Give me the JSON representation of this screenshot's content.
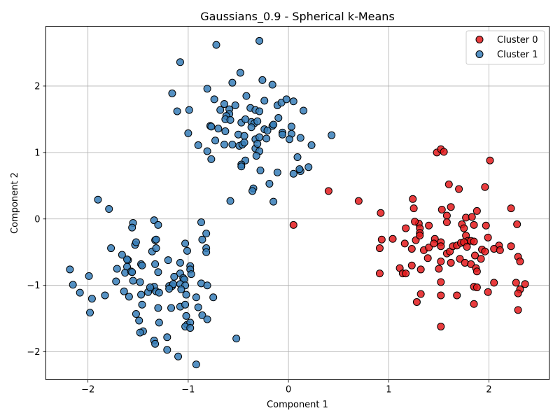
{
  "chart_data": {
    "type": "scatter",
    "title": "Gaussians_0.9 - Spherical k-Means",
    "xlabel": "Component 1",
    "ylabel": "Component 2",
    "xlim": [
      -2.42,
      2.6
    ],
    "ylim": [
      -2.42,
      2.9
    ],
    "xticks": [
      -2,
      -1,
      0,
      1,
      2
    ],
    "yticks": [
      -2,
      -1,
      0,
      1,
      2
    ],
    "grid": true,
    "legend_position": "top-right",
    "series": [
      {
        "name": "Cluster 0",
        "color": "#e41a1c",
        "points": [
          [
            1.48,
            1.0
          ],
          [
            1.52,
            1.05
          ],
          [
            1.55,
            1.01
          ],
          [
            2.01,
            0.88
          ],
          [
            1.6,
            0.52
          ],
          [
            1.7,
            0.45
          ],
          [
            1.96,
            0.48
          ],
          [
            0.4,
            0.42
          ],
          [
            0.7,
            0.27
          ],
          [
            1.24,
            0.3
          ],
          [
            1.25,
            0.16
          ],
          [
            0.92,
            0.09
          ],
          [
            1.53,
            0.14
          ],
          [
            1.62,
            0.18
          ],
          [
            1.58,
            0.05
          ],
          [
            1.77,
            0.02
          ],
          [
            1.88,
            0.12
          ],
          [
            1.83,
            0.03
          ],
          [
            2.22,
            0.16
          ],
          [
            0.05,
            -0.09
          ],
          [
            1.3,
            -0.07
          ],
          [
            1.26,
            -0.04
          ],
          [
            1.17,
            -0.14
          ],
          [
            1.4,
            -0.1
          ],
          [
            1.58,
            -0.05
          ],
          [
            1.73,
            -0.08
          ],
          [
            1.75,
            -0.14
          ],
          [
            1.85,
            -0.09
          ],
          [
            1.97,
            -0.1
          ],
          [
            2.28,
            -0.08
          ],
          [
            0.93,
            -0.31
          ],
          [
            1.04,
            -0.3
          ],
          [
            1.16,
            -0.37
          ],
          [
            1.27,
            -0.32
          ],
          [
            1.31,
            -0.14
          ],
          [
            1.31,
            -0.21
          ],
          [
            1.31,
            -0.25
          ],
          [
            1.46,
            -0.3
          ],
          [
            1.52,
            -0.35
          ],
          [
            1.52,
            -0.41
          ],
          [
            1.77,
            -0.25
          ],
          [
            1.79,
            -0.33
          ],
          [
            1.82,
            -0.33
          ],
          [
            1.85,
            -0.34
          ],
          [
            1.99,
            -0.28
          ],
          [
            2.1,
            -0.4
          ],
          [
            2.05,
            -0.45
          ],
          [
            2.22,
            -0.41
          ],
          [
            0.91,
            -0.44
          ],
          [
            1.23,
            -0.45
          ],
          [
            1.35,
            -0.47
          ],
          [
            1.4,
            -0.43
          ],
          [
            1.45,
            -0.37
          ],
          [
            1.58,
            -0.52
          ],
          [
            1.61,
            -0.49
          ],
          [
            1.64,
            -0.41
          ],
          [
            1.68,
            -0.4
          ],
          [
            1.72,
            -0.36
          ],
          [
            1.75,
            -0.35
          ],
          [
            1.78,
            -0.42
          ],
          [
            1.86,
            -0.55
          ],
          [
            1.93,
            -0.46
          ],
          [
            1.96,
            -0.49
          ],
          [
            2.11,
            -0.47
          ],
          [
            1.39,
            -0.59
          ],
          [
            1.52,
            -0.64
          ],
          [
            1.62,
            -0.66
          ],
          [
            1.71,
            -0.6
          ],
          [
            1.76,
            -0.66
          ],
          [
            1.82,
            -0.68
          ],
          [
            1.92,
            -0.6
          ],
          [
            2.29,
            -0.57
          ],
          [
            2.31,
            -0.64
          ],
          [
            1.11,
            -0.74
          ],
          [
            1.23,
            -0.7
          ],
          [
            1.32,
            -0.76
          ],
          [
            1.5,
            -0.75
          ],
          [
            1.87,
            -0.74
          ],
          [
            1.88,
            -0.79
          ],
          [
            0.91,
            -0.82
          ],
          [
            1.14,
            -0.82
          ],
          [
            1.17,
            -0.82
          ],
          [
            1.52,
            -0.95
          ],
          [
            1.85,
            -1.02
          ],
          [
            1.88,
            -1.03
          ],
          [
            2.05,
            -0.96
          ],
          [
            2.27,
            -0.96
          ],
          [
            2.36,
            -0.98
          ],
          [
            1.99,
            -1.1
          ],
          [
            2.31,
            -1.06
          ],
          [
            1.32,
            -1.13
          ],
          [
            1.52,
            -1.15
          ],
          [
            1.68,
            -1.15
          ],
          [
            2.29,
            -1.12
          ],
          [
            1.28,
            -1.25
          ],
          [
            1.85,
            -1.28
          ],
          [
            2.29,
            -1.37
          ],
          [
            1.52,
            -1.62
          ]
        ]
      },
      {
        "name": "Cluster 1",
        "color": "#377eb8",
        "points": [
          [
            -0.29,
            2.68
          ],
          [
            -0.72,
            2.62
          ],
          [
            -1.08,
            2.36
          ],
          [
            -0.48,
            2.2
          ],
          [
            -0.56,
            2.05
          ],
          [
            -0.26,
            2.09
          ],
          [
            -0.16,
            2.02
          ],
          [
            -1.16,
            1.89
          ],
          [
            -0.81,
            1.96
          ],
          [
            -0.42,
            1.85
          ],
          [
            -0.74,
            1.8
          ],
          [
            -0.53,
            1.71
          ],
          [
            -0.64,
            1.73
          ],
          [
            -0.59,
            1.65
          ],
          [
            -0.38,
            1.67
          ],
          [
            -0.33,
            1.64
          ],
          [
            -0.29,
            1.62
          ],
          [
            -0.24,
            1.78
          ],
          [
            -0.11,
            1.71
          ],
          [
            -0.07,
            1.75
          ],
          [
            -0.02,
            1.8
          ],
          [
            0.05,
            1.77
          ],
          [
            0.15,
            1.63
          ],
          [
            -1.11,
            1.62
          ],
          [
            -0.99,
            1.64
          ],
          [
            -0.68,
            1.64
          ],
          [
            -0.59,
            1.58
          ],
          [
            -0.62,
            1.55
          ],
          [
            -0.63,
            1.5
          ],
          [
            -0.58,
            1.49
          ],
          [
            -0.37,
            1.46
          ],
          [
            -0.34,
            1.44
          ],
          [
            -0.31,
            1.47
          ],
          [
            -0.37,
            1.38
          ],
          [
            -0.24,
            1.35
          ],
          [
            -0.16,
            1.4
          ],
          [
            -0.15,
            1.42
          ],
          [
            -0.1,
            1.52
          ],
          [
            -0.47,
            1.45
          ],
          [
            -0.78,
            1.4
          ],
          [
            -0.77,
            1.39
          ],
          [
            -0.7,
            1.36
          ],
          [
            -0.63,
            1.32
          ],
          [
            -0.5,
            1.27
          ],
          [
            -0.43,
            1.5
          ],
          [
            -0.44,
            1.25
          ],
          [
            -0.33,
            1.2
          ],
          [
            -0.29,
            1.23
          ],
          [
            -0.22,
            1.21
          ],
          [
            -0.21,
            1.33
          ],
          [
            -0.06,
            1.3
          ],
          [
            -0.06,
            1.27
          ],
          [
            0.03,
            1.39
          ],
          [
            0.03,
            1.28
          ],
          [
            0.12,
            1.22
          ],
          [
            0.23,
            1.11
          ],
          [
            0.43,
            1.26
          ],
          [
            -1.0,
            1.29
          ],
          [
            -0.9,
            1.11
          ],
          [
            -0.73,
            1.18
          ],
          [
            -0.64,
            1.12
          ],
          [
            -0.56,
            1.12
          ],
          [
            -0.49,
            1.1
          ],
          [
            -0.46,
            1.12
          ],
          [
            -0.44,
            1.15
          ],
          [
            -0.33,
            1.06
          ],
          [
            -0.31,
            1.13
          ],
          [
            -0.29,
            1.02
          ],
          [
            -0.32,
            0.95
          ],
          [
            -0.81,
            1.02
          ],
          [
            -0.43,
            0.88
          ],
          [
            -0.47,
            0.82
          ],
          [
            -0.47,
            0.79
          ],
          [
            -0.28,
            0.73
          ],
          [
            -0.77,
            0.9
          ],
          [
            0.01,
            1.2
          ],
          [
            0.09,
            0.93
          ],
          [
            0.12,
            0.72
          ],
          [
            0.11,
            0.75
          ],
          [
            0.05,
            0.68
          ],
          [
            0.2,
            0.78
          ],
          [
            -0.11,
            0.7
          ],
          [
            -0.19,
            0.53
          ],
          [
            -0.35,
            0.46
          ],
          [
            -0.36,
            0.42
          ],
          [
            -0.58,
            0.27
          ],
          [
            -0.15,
            0.26
          ],
          [
            -1.9,
            0.29
          ],
          [
            -1.79,
            0.15
          ],
          [
            -1.55,
            -0.06
          ],
          [
            -1.56,
            -0.13
          ],
          [
            -1.34,
            -0.02
          ],
          [
            -1.3,
            -0.09
          ],
          [
            -0.87,
            -0.05
          ],
          [
            -1.53,
            -0.39
          ],
          [
            -1.52,
            -0.35
          ],
          [
            -1.33,
            -0.32
          ],
          [
            -1.32,
            -0.31
          ],
          [
            -1.03,
            -0.37
          ],
          [
            -0.82,
            -0.22
          ],
          [
            -0.86,
            -0.31
          ],
          [
            -1.77,
            -0.44
          ],
          [
            -1.66,
            -0.54
          ],
          [
            -1.6,
            -0.62
          ],
          [
            -1.61,
            -0.61
          ],
          [
            -1.36,
            -0.49
          ],
          [
            -1.32,
            -0.44
          ],
          [
            -1.01,
            -0.48
          ],
          [
            -0.82,
            -0.44
          ],
          [
            -0.82,
            -0.5
          ],
          [
            -1.61,
            -0.72
          ],
          [
            -1.71,
            -0.75
          ],
          [
            -1.63,
            -0.81
          ],
          [
            -1.57,
            -0.79
          ],
          [
            -1.56,
            -0.8
          ],
          [
            -1.47,
            -0.68
          ],
          [
            -1.46,
            -0.7
          ],
          [
            -1.33,
            -0.68
          ],
          [
            -1.3,
            -0.8
          ],
          [
            -1.2,
            -0.62
          ],
          [
            -1.08,
            -0.66
          ],
          [
            -0.98,
            -0.71
          ],
          [
            -0.98,
            -0.76
          ],
          [
            -0.97,
            -0.83
          ],
          [
            -1.08,
            -0.82
          ],
          [
            -1.14,
            -0.87
          ],
          [
            -1.05,
            -0.89
          ],
          [
            -1.04,
            -0.91
          ],
          [
            -2.18,
            -0.76
          ],
          [
            -1.99,
            -0.86
          ],
          [
            -2.15,
            -0.99
          ],
          [
            -1.72,
            -0.94
          ],
          [
            -1.55,
            -0.93
          ],
          [
            -1.48,
            -0.95
          ],
          [
            -1.37,
            -1.05
          ],
          [
            -1.34,
            -1.02
          ],
          [
            -1.32,
            -1.09
          ],
          [
            -1.19,
            -1.01
          ],
          [
            -1.16,
            -1.01
          ],
          [
            -1.15,
            -0.98
          ],
          [
            -1.08,
            -0.98
          ],
          [
            -1.03,
            -1.0
          ],
          [
            -0.87,
            -0.97
          ],
          [
            -0.81,
            -1.0
          ],
          [
            -2.08,
            -1.11
          ],
          [
            -1.96,
            -1.2
          ],
          [
            -1.83,
            -1.15
          ],
          [
            -1.64,
            -1.09
          ],
          [
            -1.59,
            -1.17
          ],
          [
            -1.47,
            -1.14
          ],
          [
            -1.4,
            -1.1
          ],
          [
            -1.38,
            -1.03
          ],
          [
            -1.29,
            -1.11
          ],
          [
            -1.19,
            -1.05
          ],
          [
            -1.07,
            -1.06
          ],
          [
            -1.02,
            -1.14
          ],
          [
            -0.92,
            -1.18
          ],
          [
            -0.75,
            -1.18
          ],
          [
            -1.46,
            -1.29
          ],
          [
            -1.3,
            -1.34
          ],
          [
            -1.17,
            -1.34
          ],
          [
            -1.08,
            -1.32
          ],
          [
            -1.03,
            -1.29
          ],
          [
            -0.9,
            -1.33
          ],
          [
            -1.98,
            -1.41
          ],
          [
            -1.52,
            -1.43
          ],
          [
            -1.02,
            -1.46
          ],
          [
            -0.86,
            -1.45
          ],
          [
            -0.81,
            -1.51
          ],
          [
            -1.49,
            -1.53
          ],
          [
            -1.29,
            -1.56
          ],
          [
            -1.01,
            -1.59
          ],
          [
            -0.98,
            -1.56
          ],
          [
            -1.03,
            -1.62
          ],
          [
            -0.98,
            -1.64
          ],
          [
            -1.45,
            -1.69
          ],
          [
            -1.48,
            -1.71
          ],
          [
            -1.21,
            -1.78
          ],
          [
            -1.34,
            -1.83
          ],
          [
            -1.33,
            -1.88
          ],
          [
            -1.21,
            -1.97
          ],
          [
            -1.1,
            -2.07
          ],
          [
            -0.92,
            -2.19
          ],
          [
            -0.52,
            -1.8
          ]
        ]
      }
    ]
  }
}
